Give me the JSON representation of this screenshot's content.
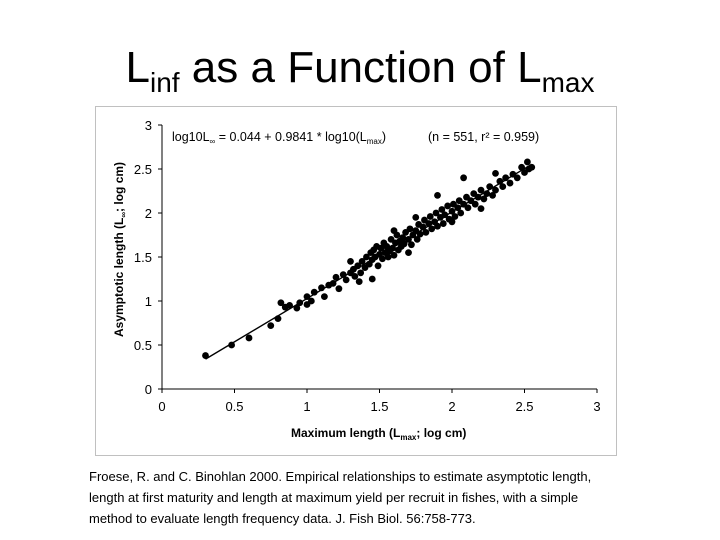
{
  "slide": {
    "title_main_1": "L",
    "title_sub_1": "inf",
    "title_main_2": " as a Function of L",
    "title_sub_2": "max"
  },
  "citation": {
    "line1": "Froese, R. and C. Binohlan 2000. Empirical relationships to estimate asymptotic length,",
    "line2": "length at first maturity and length at maximum yield per recruit in fishes, with a simple",
    "line3": "method to evaluate length frequency data. J. Fish Biol. 56:758-773."
  },
  "chart_data": {
    "type": "scatter",
    "xlabel_main": "Maximum length (L",
    "xlabel_sub": "max",
    "xlabel_tail": "; log cm)",
    "ylabel_main": "Asymptotic length (L",
    "ylabel_sub": "∞",
    "ylabel_tail": "; log cm)",
    "equation_main": "log10L",
    "equation_sub": "∞",
    "equation_mid": " = 0.044 + 0.9841 * log10(L",
    "equation_sub2": "max",
    "equation_end": ")",
    "stats": "(n = 551, r² = 0.959)",
    "xlim": [
      0,
      3
    ],
    "ylim": [
      0,
      3
    ],
    "x_ticks": [
      "0",
      "0.5",
      "1",
      "1.5",
      "2",
      "2.5",
      "3"
    ],
    "y_ticks": [
      "0",
      "0.5",
      "1",
      "1.5",
      "2",
      "2.5",
      "3"
    ],
    "regression": {
      "intercept": 0.044,
      "slope": 0.9841,
      "x_range": [
        0.3,
        2.55
      ]
    },
    "point_color": "#000000",
    "points": [
      [
        0.3,
        0.38
      ],
      [
        0.48,
        0.5
      ],
      [
        0.6,
        0.58
      ],
      [
        0.75,
        0.72
      ],
      [
        0.8,
        0.8
      ],
      [
        0.85,
        0.93
      ],
      [
        0.82,
        0.98
      ],
      [
        0.88,
        0.95
      ],
      [
        0.93,
        0.92
      ],
      [
        0.95,
        0.98
      ],
      [
        1.0,
        0.96
      ],
      [
        1.03,
        1.0
      ],
      [
        1.05,
        1.1
      ],
      [
        1.1,
        1.15
      ],
      [
        1.12,
        1.05
      ],
      [
        1.15,
        1.18
      ],
      [
        1.18,
        1.2
      ],
      [
        1.2,
        1.27
      ],
      [
        1.22,
        1.14
      ],
      [
        1.25,
        1.3
      ],
      [
        1.27,
        1.24
      ],
      [
        1.3,
        1.32
      ],
      [
        1.32,
        1.36
      ],
      [
        1.33,
        1.28
      ],
      [
        1.35,
        1.4
      ],
      [
        1.37,
        1.32
      ],
      [
        1.38,
        1.45
      ],
      [
        1.4,
        1.38
      ],
      [
        1.41,
        1.5
      ],
      [
        1.43,
        1.42
      ],
      [
        1.44,
        1.55
      ],
      [
        1.45,
        1.47
      ],
      [
        1.46,
        1.58
      ],
      [
        1.47,
        1.5
      ],
      [
        1.48,
        1.62
      ],
      [
        1.49,
        1.4
      ],
      [
        1.5,
        1.53
      ],
      [
        1.51,
        1.6
      ],
      [
        1.52,
        1.48
      ],
      [
        1.53,
        1.66
      ],
      [
        1.54,
        1.55
      ],
      [
        1.55,
        1.62
      ],
      [
        1.56,
        1.5
      ],
      [
        1.57,
        1.57
      ],
      [
        1.58,
        1.7
      ],
      [
        1.59,
        1.6
      ],
      [
        1.6,
        1.52
      ],
      [
        1.61,
        1.66
      ],
      [
        1.62,
        1.75
      ],
      [
        1.63,
        1.58
      ],
      [
        1.64,
        1.68
      ],
      [
        1.65,
        1.62
      ],
      [
        1.66,
        1.72
      ],
      [
        1.67,
        1.65
      ],
      [
        1.68,
        1.78
      ],
      [
        1.7,
        1.7
      ],
      [
        1.71,
        1.82
      ],
      [
        1.72,
        1.64
      ],
      [
        1.73,
        1.75
      ],
      [
        1.75,
        1.8
      ],
      [
        1.76,
        1.7
      ],
      [
        1.77,
        1.87
      ],
      [
        1.78,
        1.76
      ],
      [
        1.8,
        1.84
      ],
      [
        1.81,
        1.92
      ],
      [
        1.82,
        1.78
      ],
      [
        1.84,
        1.88
      ],
      [
        1.85,
        1.96
      ],
      [
        1.86,
        1.82
      ],
      [
        1.88,
        1.9
      ],
      [
        1.89,
        2.0
      ],
      [
        1.9,
        1.85
      ],
      [
        1.92,
        1.95
      ],
      [
        1.93,
        2.04
      ],
      [
        1.94,
        1.88
      ],
      [
        1.95,
        1.98
      ],
      [
        1.97,
        2.08
      ],
      [
        1.98,
        1.93
      ],
      [
        2.0,
        2.02
      ],
      [
        2.01,
        2.1
      ],
      [
        2.02,
        1.96
      ],
      [
        2.04,
        2.06
      ],
      [
        2.05,
        2.14
      ],
      [
        2.06,
        2.0
      ],
      [
        2.08,
        2.1
      ],
      [
        2.1,
        2.18
      ],
      [
        2.11,
        2.06
      ],
      [
        2.13,
        2.14
      ],
      [
        2.15,
        2.22
      ],
      [
        2.16,
        2.1
      ],
      [
        2.18,
        2.18
      ],
      [
        2.2,
        2.26
      ],
      [
        2.22,
        2.16
      ],
      [
        2.24,
        2.22
      ],
      [
        2.26,
        2.3
      ],
      [
        2.28,
        2.2
      ],
      [
        2.3,
        2.26
      ],
      [
        2.33,
        2.36
      ],
      [
        2.35,
        2.3
      ],
      [
        2.37,
        2.4
      ],
      [
        2.4,
        2.34
      ],
      [
        2.42,
        2.44
      ],
      [
        2.45,
        2.4
      ],
      [
        2.48,
        2.52
      ],
      [
        2.5,
        2.46
      ],
      [
        2.52,
        2.58
      ],
      [
        2.53,
        2.5
      ],
      [
        2.55,
        2.52
      ],
      [
        1.9,
        2.2
      ],
      [
        2.08,
        2.4
      ],
      [
        1.45,
        1.25
      ],
      [
        1.6,
        1.8
      ],
      [
        1.3,
        1.45
      ],
      [
        2.2,
        2.05
      ],
      [
        1.0,
        1.05
      ],
      [
        1.36,
        1.22
      ],
      [
        1.7,
        1.55
      ],
      [
        1.75,
        1.95
      ],
      [
        2.0,
        1.9
      ],
      [
        2.3,
        2.45
      ]
    ]
  }
}
